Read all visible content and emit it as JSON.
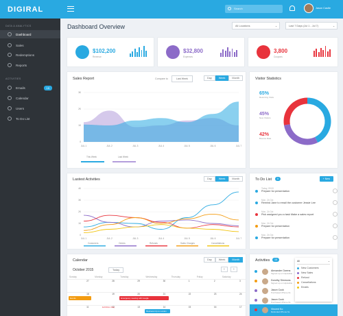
{
  "app": {
    "logo": "DIGIRAL",
    "search_placeholder": "Search",
    "user": "Jason Castle"
  },
  "sidebar": {
    "section1": "DATA & ANALYTICS",
    "items1": [
      {
        "label": "Dashboard",
        "active": true
      },
      {
        "label": "Sales"
      },
      {
        "label": "Redemptions"
      },
      {
        "label": "Reports"
      }
    ],
    "section2": "ACTIVITIES",
    "items2": [
      {
        "label": "Emails",
        "badge": "15"
      },
      {
        "label": "Calendar"
      },
      {
        "label": "Users"
      },
      {
        "label": "To Do List"
      }
    ]
  },
  "header": {
    "title": "Dashboard Overview",
    "location": "All Locations",
    "range": "Last 7 Days (Jul 1 - Jul 7)"
  },
  "stats": [
    {
      "value": "$102,200",
      "sub": "Revenue",
      "color": "#29a9e1",
      "bars": [
        5,
        8,
        12,
        7,
        14,
        10,
        16,
        9
      ]
    },
    {
      "value": "$32,800",
      "sub": "Expenses",
      "color": "#8c6bc8",
      "bars": [
        6,
        11,
        9,
        14,
        8,
        12,
        7,
        10
      ]
    },
    {
      "value": "3,800",
      "sub": "Coupons",
      "color": "#e8333c",
      "bars": [
        9,
        12,
        7,
        13,
        10,
        16,
        8,
        11
      ]
    }
  ],
  "sales": {
    "title": "Sales Report",
    "compare_label": "Compare to",
    "compare_value": "Last Week",
    "tabs": [
      "Day",
      "Week",
      "Month"
    ],
    "active": "Week",
    "legend": [
      "This Week",
      "Last Week"
    ],
    "chart_data": {
      "type": "area",
      "x": [
        "JUL 1",
        "JUL 2",
        "JUL 3",
        "JUL 4",
        "JUL 5",
        "JUL 6",
        "JUL 7"
      ],
      "ylim": [
        0,
        3000
      ],
      "yticks": [
        "0",
        "1K",
        "2K",
        "3K"
      ],
      "series": [
        {
          "name": "This Week",
          "color": "#29a9e1",
          "values": [
            1050,
            1000,
            1300,
            1450,
            1200,
            1700,
            2450
          ]
        },
        {
          "name": "Last Week",
          "color": "#b39ddb",
          "values": [
            1200,
            1900,
            900,
            1000,
            1300,
            1450,
            1000
          ]
        }
      ]
    }
  },
  "visitor": {
    "title": "Visitor Statistics",
    "items": [
      {
        "pct": "65%",
        "label": "Returning Visits",
        "color": "#29a9e1"
      },
      {
        "pct": "45%",
        "label": "New Visitors",
        "color": "#8c6bc8"
      },
      {
        "pct": "42%",
        "label": "Bounce Rate",
        "color": "#e8333c"
      }
    ],
    "chart_data": {
      "type": "pie",
      "values": [
        65,
        45,
        42
      ],
      "colors": [
        "#29a9e1",
        "#8c6bc8",
        "#e8333c"
      ]
    }
  },
  "activities_chart": {
    "title": "Lastest Activities",
    "tabs": [
      "Day",
      "Week",
      "Month"
    ],
    "active": "Week",
    "chart_data": {
      "type": "line",
      "x": [
        "JUL 1",
        "JUL 2",
        "JUL 3",
        "JUL 4",
        "JUL 5",
        "JUL 6",
        "JUL 7"
      ],
      "ylim": [
        0,
        4000
      ],
      "yticks": [
        "0",
        "1K",
        "2K",
        "3K",
        "4K"
      ],
      "series": [
        {
          "name": "Customers",
          "color": "#29a9e1",
          "values": [
            700,
            1100,
            1000,
            500,
            1500,
            2600,
            3700
          ]
        },
        {
          "name": "Orders",
          "color": "#8c6bc8",
          "values": [
            1700,
            1100,
            700,
            1200,
            1300,
            1000,
            800
          ]
        },
        {
          "name": "Refunds",
          "color": "#e8333c",
          "values": [
            1200,
            1700,
            1500,
            1100,
            600,
            900,
            700
          ]
        },
        {
          "name": "Sales Charges",
          "color": "#f39c12",
          "values": [
            400,
            900,
            1500,
            1000,
            1400,
            1800,
            1300
          ]
        },
        {
          "name": "Cancellations",
          "color": "#f1c40f",
          "values": [
            200,
            500,
            700,
            900,
            600,
            500,
            300
          ]
        }
      ]
    }
  },
  "todo": {
    "title": "To Do List",
    "count": "0",
    "new_btn": "+ New",
    "items": [
      {
        "time": "Today, 09:00",
        "text": "Prepare for presentation",
        "color": "#29a9e1"
      },
      {
        "time": "Mon, 24 Oct",
        "text": "Remind Jane to email the customer Jessie Lee",
        "color": "#29a9e1"
      },
      {
        "time": "Mon, 24 Oct",
        "text": "Pick assigned you a task Make a sales report",
        "color": "#e8333c"
      },
      {
        "time": "Mon, 24 Oct",
        "text": "Prepare for presentation",
        "color": "#f39c12"
      },
      {
        "time": "Mon, 24 Oct",
        "text": "Prepare for presentation",
        "color": "#29a9e1"
      }
    ]
  },
  "calendar": {
    "title": "Calendar",
    "tabs": [
      "Day",
      "Week",
      "Month"
    ],
    "active": "Month",
    "month": "October 2015",
    "today": "Today",
    "days": [
      "Sunday",
      "Monday",
      "Tuesday",
      "Wednesday",
      "Thursday",
      "Friday",
      "Saturday"
    ],
    "row1": [
      "27",
      "28",
      "29",
      "30",
      "1",
      "2",
      "3"
    ],
    "row2": [
      "18",
      "19",
      "20",
      "21",
      "22",
      "23",
      "24"
    ],
    "row3": [
      "11",
      "12",
      "13",
      "14",
      "15",
      "16",
      "17"
    ],
    "events": [
      {
        "label": "Emergency meeting with Google",
        "color": "#e8333c"
      },
      {
        "label": "Events",
        "color": "#f39c12"
      },
      {
        "label": "Business trip to London",
        "color": "#29a9e1"
      },
      {
        "label": "Exhibition Day",
        "color": "#e8333c"
      }
    ]
  },
  "activity_feed": {
    "title": "Activities",
    "count": "15",
    "filter": "All",
    "filters": [
      {
        "label": "New Customers",
        "color": "#29a9e1"
      },
      {
        "label": "New Sales",
        "color": "#8c6bc8"
      },
      {
        "label": "Refund",
        "color": "#e8333c"
      },
      {
        "label": "Cancellations",
        "color": "#f39c12"
      },
      {
        "label": "Emails",
        "color": "#f1c40f"
      }
    ],
    "items": [
      {
        "name": "Alexander Owens",
        "sub": "Signed up on Hipstable",
        "color": "#29a9e1"
      },
      {
        "name": "Dorothy Simmons",
        "sub": "Signed up on Hipstable",
        "color": "#f39c12"
      },
      {
        "name": "Jason Cook",
        "sub": "Purchased iPhone 6s",
        "color": "#8c6bc8"
      },
      {
        "name": "Jason Cook",
        "sub": "Purchased iPhone 6s",
        "color": "#8c6bc8"
      },
      {
        "name": "Vincent Ko",
        "sub": "Refunded iPhone 6s",
        "color": "#e8333c"
      }
    ]
  }
}
